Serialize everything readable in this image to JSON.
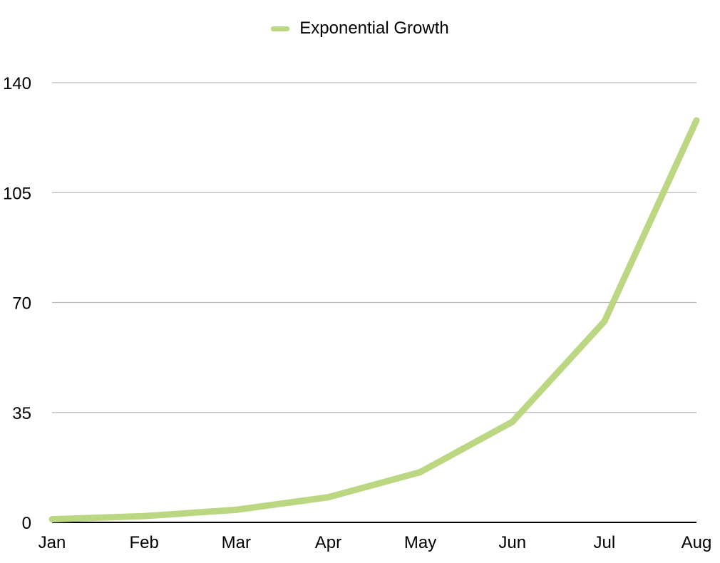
{
  "chart_data": {
    "type": "line",
    "categories": [
      "Jan",
      "Feb",
      "Mar",
      "Apr",
      "May",
      "Jun",
      "Jul",
      "Aug"
    ],
    "series": [
      {
        "name": "Exponential Growth",
        "values": [
          1,
          2,
          4,
          8,
          16,
          32,
          64,
          128
        ],
        "color": "#bcd782"
      }
    ],
    "title": "",
    "xlabel": "",
    "ylabel": "",
    "ylim": [
      0,
      140
    ],
    "yticks": [
      0,
      35,
      70,
      105,
      140
    ],
    "grid": "horizontal",
    "legend": "top-center"
  }
}
